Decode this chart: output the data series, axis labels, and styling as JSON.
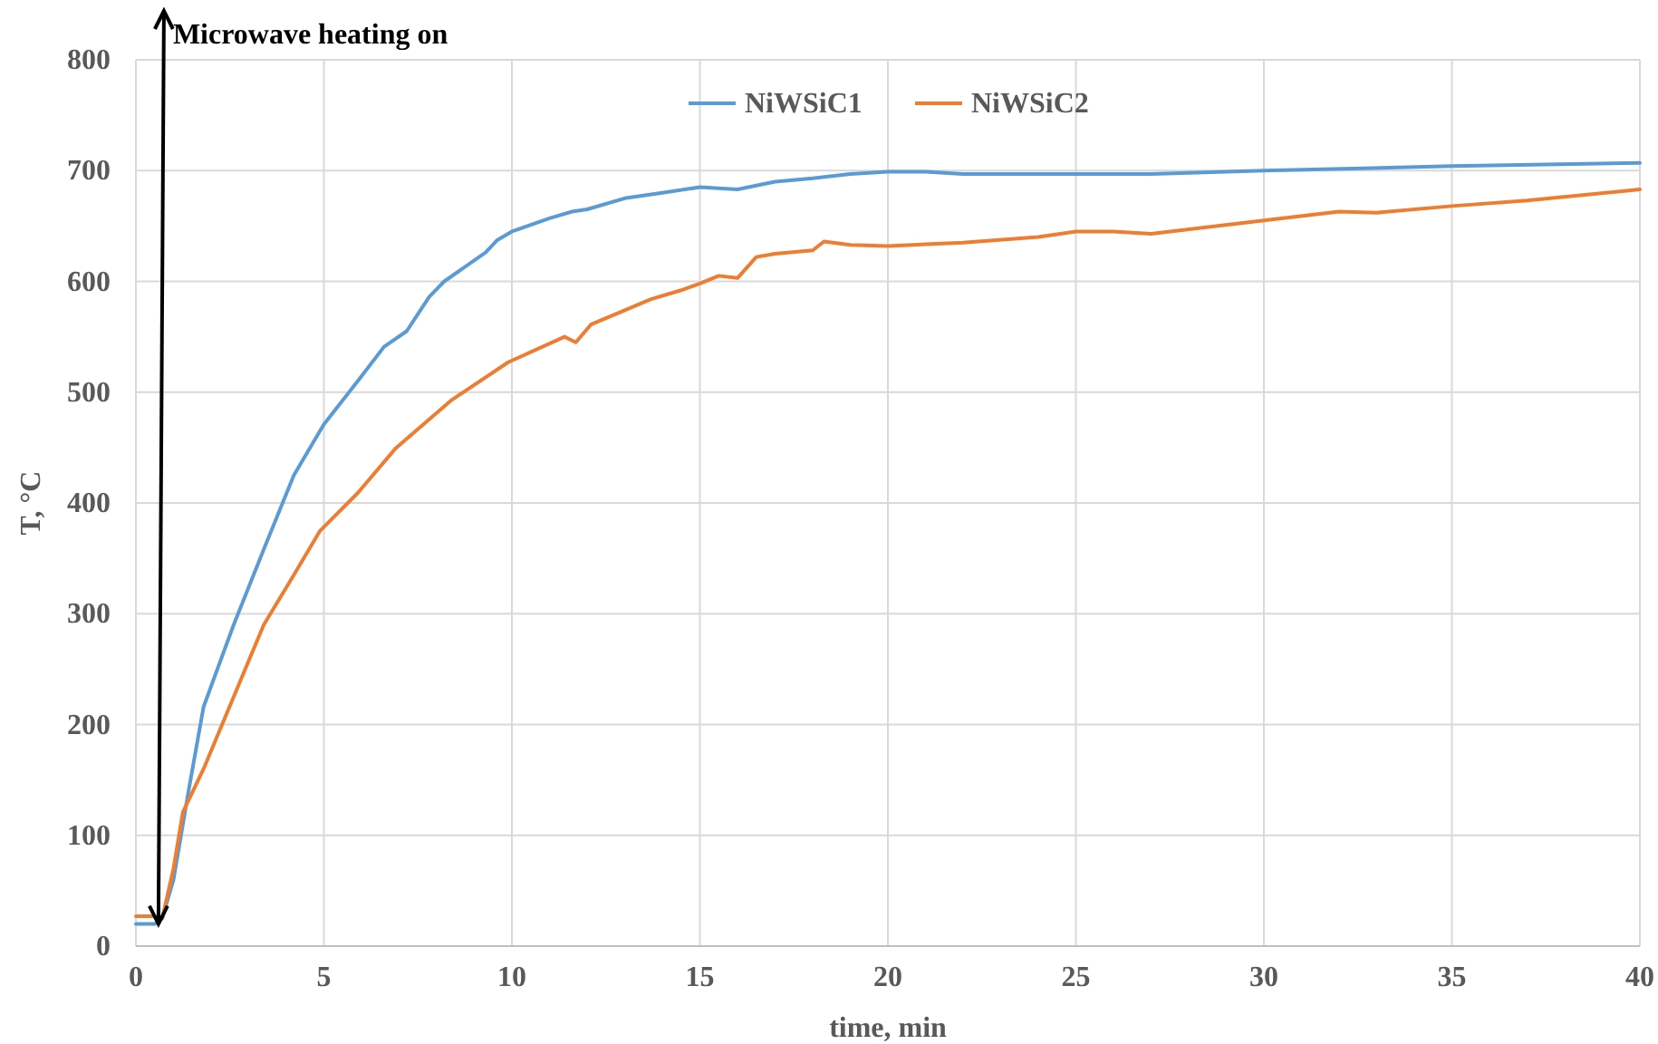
{
  "chart_data": {
    "type": "line",
    "xlabel": "time, min",
    "ylabel": "T, °C",
    "xlim": [
      0,
      40
    ],
    "xticks": [
      0,
      5,
      10,
      15,
      20,
      25,
      30,
      35,
      40
    ],
    "ylim": [
      0,
      800
    ],
    "yticks": [
      0,
      100,
      200,
      300,
      400,
      500,
      600,
      700,
      800
    ],
    "grid": true,
    "legend": "top",
    "marker": "none",
    "line_style": "solid",
    "annotations": [
      {
        "text": "Microwave heating on",
        "x": 0.6,
        "y": 20
      }
    ],
    "series": [
      {
        "name": "NiWSiC1",
        "color": "#5b9bd5",
        "x": [
          0,
          0.5,
          0.7,
          1,
          1.4,
          1.8,
          2.6,
          3.4,
          4.2,
          5,
          5.9,
          6.6,
          7.2,
          7.8,
          8.2,
          9.3,
          9.6,
          10,
          11,
          11.6,
          12,
          13,
          14,
          15,
          16,
          17,
          18,
          19,
          20,
          21,
          22,
          25,
          27,
          30,
          35,
          40
        ],
        "values": [
          20,
          20,
          25,
          60,
          140,
          216,
          290,
          358,
          425,
          471,
          510,
          541,
          555,
          586,
          600,
          626,
          637,
          645,
          657,
          663,
          665,
          675,
          680,
          685,
          683,
          690,
          693,
          697,
          699,
          699,
          697,
          697,
          697,
          700,
          704,
          707
        ]
      },
      {
        "name": "NiWSiC2",
        "color": "#ed7d31",
        "x": [
          0,
          0.5,
          0.7,
          1,
          1.25,
          1.8,
          2.6,
          3.4,
          4.2,
          4.9,
          5.9,
          6.9,
          8.4,
          9.9,
          11.4,
          11.7,
          12.1,
          13.7,
          14.5,
          15,
          15.5,
          16,
          16.5,
          17,
          18,
          18.3,
          19,
          20,
          22,
          24,
          25,
          26,
          27,
          30,
          32,
          33,
          35,
          37,
          40
        ],
        "values": [
          27,
          27,
          25,
          70,
          121,
          160,
          225,
          290,
          335,
          375,
          409,
          449,
          493,
          527,
          550,
          545,
          561,
          584,
          592,
          598,
          605,
          603,
          622,
          625,
          628,
          636,
          633,
          632,
          635,
          640,
          645,
          645,
          643,
          655,
          663,
          662,
          668,
          673,
          683
        ]
      }
    ]
  }
}
